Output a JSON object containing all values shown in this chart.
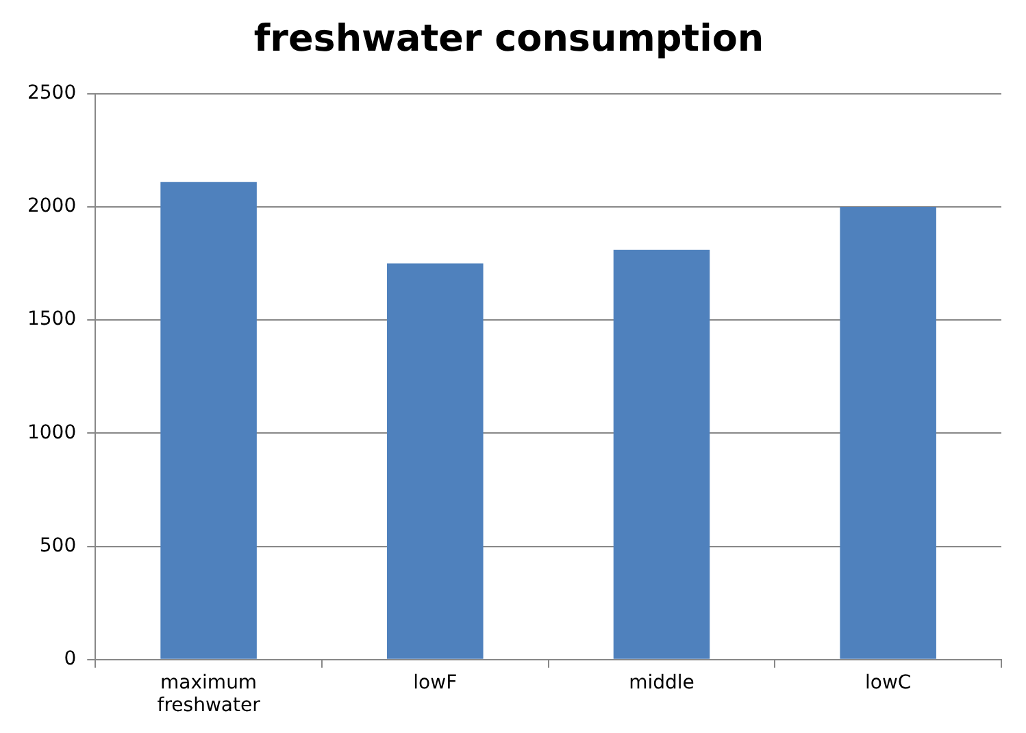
{
  "chart_data": {
    "type": "bar",
    "title": "freshwater consumption",
    "categories": [
      "maximum freshwater",
      "lowF",
      "middle",
      "lowC"
    ],
    "values": [
      2110,
      1750,
      1810,
      2000
    ],
    "color": "#4f81bd",
    "ylim": [
      0,
      2500
    ],
    "yticks": [
      0,
      500,
      1000,
      1500,
      2000,
      2500
    ],
    "grid": "y",
    "legend": false
  }
}
